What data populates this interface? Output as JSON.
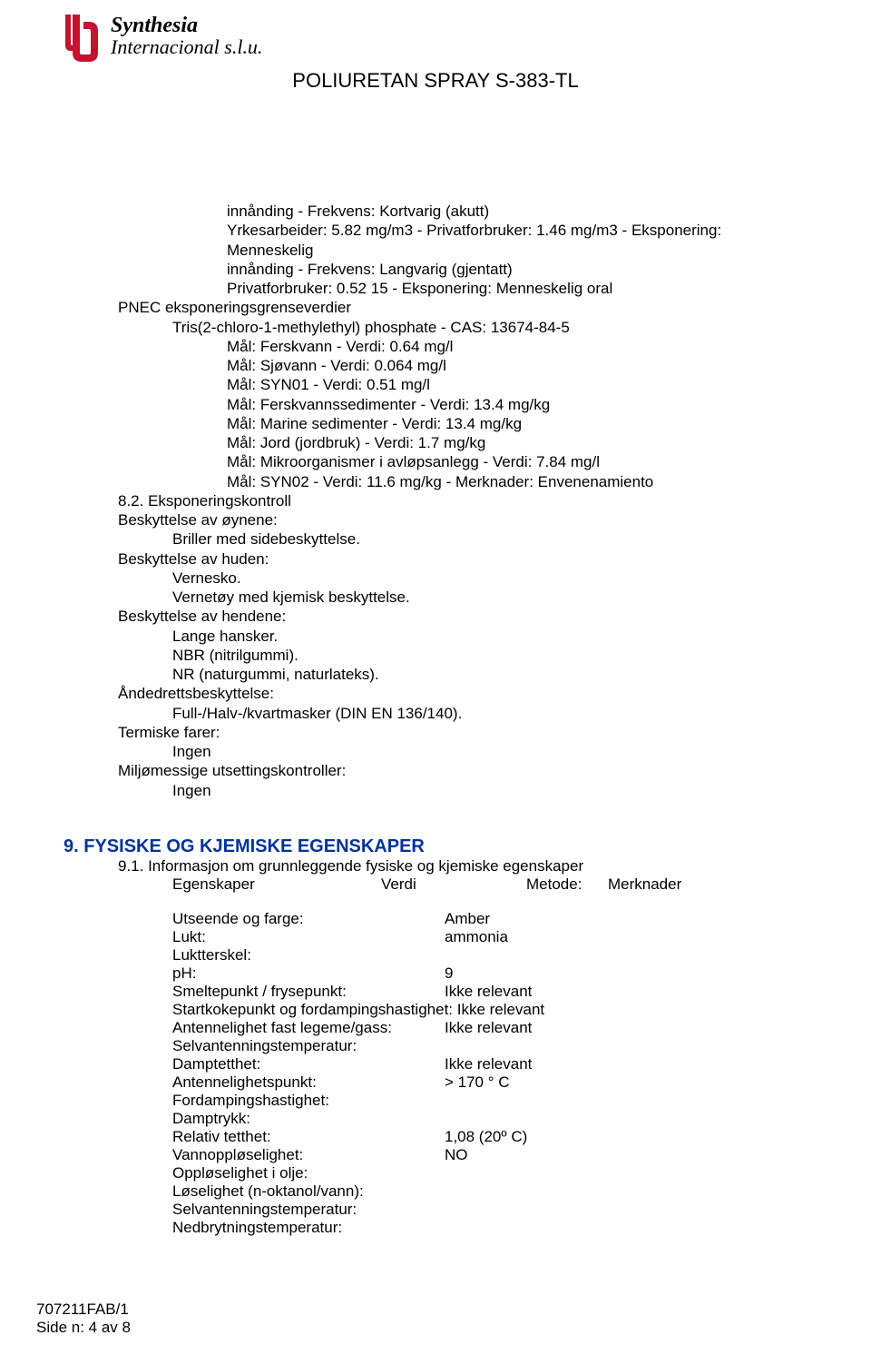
{
  "logo": {
    "line1": "Synthesia",
    "line2": "Internacional s.l.u."
  },
  "doc_title": "POLIURETAN SPRAY S-383-TL",
  "exposure_block": {
    "lines": [
      {
        "indent": 2,
        "text": "innånding - Frekvens: Kortvarig (akutt)"
      },
      {
        "indent": 2,
        "text": "Yrkesarbeider: 5.82 mg/m3 - Privatforbruker: 1.46 mg/m3 - Eksponering: Menneskelig"
      },
      {
        "indent": 2,
        "text": "innånding - Frekvens: Langvarig (gjentatt)"
      },
      {
        "indent": 2,
        "text": "Privatforbruker: 0.52 15 - Eksponering: Menneskelig oral"
      },
      {
        "indent": 0,
        "text": "PNEC eksponeringsgrenseverdier"
      },
      {
        "indent": 1,
        "text": "Tris(2-chloro-1-methylethyl) phosphate - CAS: 13674-84-5"
      },
      {
        "indent": 2,
        "text": "Mål: Ferskvann - Verdi: 0.64 mg/l"
      },
      {
        "indent": 2,
        "text": "Mål: Sjøvann - Verdi: 0.064 mg/l"
      },
      {
        "indent": 2,
        "text": "Mål: SYN01 - Verdi: 0.51 mg/l"
      },
      {
        "indent": 2,
        "text": "Mål: Ferskvannssedimenter - Verdi: 13.4 mg/kg"
      },
      {
        "indent": 2,
        "text": "Mål: Marine sedimenter - Verdi: 13.4 mg/kg"
      },
      {
        "indent": 2,
        "text": "Mål: Jord (jordbruk) - Verdi: 1.7 mg/kg"
      },
      {
        "indent": 2,
        "text": "Mål: Mikroorganismer i avløpsanlegg - Verdi: 7.84 mg/l"
      },
      {
        "indent": 2,
        "text": "Mål: SYN02 - Verdi: 11.6 mg/kg - Merknader: Envenenamiento"
      },
      {
        "indent": 0,
        "text": "8.2. Eksponeringskontroll"
      },
      {
        "indent": 0,
        "text": "Beskyttelse av øynene:"
      },
      {
        "indent": 1,
        "text": "Briller med sidebeskyttelse."
      },
      {
        "indent": 0,
        "text": "Beskyttelse av huden:"
      },
      {
        "indent": 1,
        "text": "Vernesko."
      },
      {
        "indent": 1,
        "text": "Vernetøy med kjemisk beskyttelse."
      },
      {
        "indent": 0,
        "text": "Beskyttelse av hendene:"
      },
      {
        "indent": 1,
        "text": "Lange hansker."
      },
      {
        "indent": 1,
        "text": "NBR (nitrilgummi)."
      },
      {
        "indent": 1,
        "text": "NR (naturgummi, naturlateks)."
      },
      {
        "indent": 0,
        "text": "Åndedrettsbeskyttelse:"
      },
      {
        "indent": 1,
        "text": "Full-/Halv-/kvartmasker (DIN EN 136/140)."
      },
      {
        "indent": 0,
        "text": "Termiske farer:"
      },
      {
        "indent": 1,
        "text": "Ingen"
      },
      {
        "indent": 0,
        "text": "Miljømessige utsettingskontroller:"
      },
      {
        "indent": 1,
        "text": "Ingen"
      }
    ]
  },
  "section9": {
    "heading": "9. FYSISKE OG KJEMISKE EGENSKAPER",
    "sub_heading": "9.1. Informasjon om grunnleggende fysiske og kjemiske egenskaper",
    "table_header": {
      "c1": "Egenskaper",
      "c2": "Verdi",
      "c3": "Metode:",
      "c4": "Merknader"
    },
    "properties": [
      {
        "label": "Utseende og farge:",
        "value": "Amber"
      },
      {
        "label": "Lukt:",
        "value": "ammonia"
      },
      {
        "label": "Luktterskel:",
        "value": ""
      },
      {
        "label": "pH:",
        "value": "9"
      },
      {
        "label": "Smeltepunkt / frysepunkt:",
        "value": "Ikke relevant"
      },
      {
        "label": "Startkokepunkt og fordampingshastighet: Ikke relevant",
        "value": ""
      },
      {
        "label": "Antennelighet fast legeme/gass:",
        "value": "Ikke relevant"
      },
      {
        "label": "Selvantenningstemperatur:",
        "value": ""
      },
      {
        "label": "Damptetthet:",
        "value": "Ikke relevant"
      },
      {
        "label": "Antennelighetspunkt:",
        "value": "> 170 ° C"
      },
      {
        "label": "Fordampingshastighet:",
        "value": ""
      },
      {
        "label": "Damptrykk:",
        "value": ""
      },
      {
        "label": "Relativ tetthet:",
        "value": "1,08  (20º C)"
      },
      {
        "label": "Vannoppløselighet:",
        "value": "NO"
      },
      {
        "label": "Oppløselighet i olje:",
        "value": ""
      },
      {
        "label": "Løselighet (n-oktanol/vann):",
        "value": ""
      },
      {
        "label": "Selvantenningstemperatur:",
        "value": ""
      },
      {
        "label": "Nedbrytningstemperatur:",
        "value": ""
      }
    ]
  },
  "footer": {
    "ref": "707211FAB/1",
    "page": "Side n: 4  av 8"
  },
  "colors": {
    "heading_blue": "#003399",
    "logo_red": "#c4122f",
    "text": "#000000",
    "bg": "#ffffff"
  }
}
